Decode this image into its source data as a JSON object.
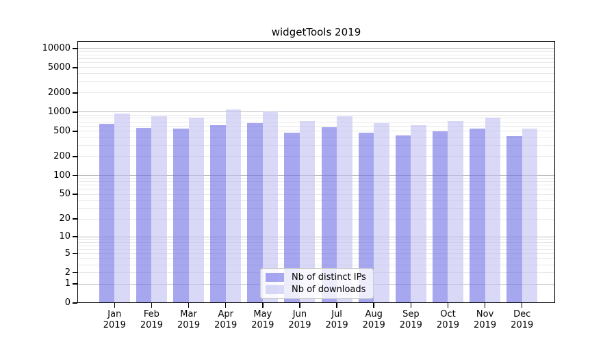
{
  "title": "widgetTools 2019",
  "chart_data": {
    "type": "bar",
    "title": "widgetTools 2019",
    "categories": [
      "Jan 2019",
      "Feb 2019",
      "Mar 2019",
      "Apr 2019",
      "May 2019",
      "Jun 2019",
      "Jul 2019",
      "Aug 2019",
      "Sep 2019",
      "Oct 2019",
      "Nov 2019",
      "Dec 2019"
    ],
    "series": [
      {
        "name": "Nb of distinct IPs",
        "color": "rgba(108,108,230,0.6)",
        "color_flat": "#a7a7f0",
        "values": [
          655,
          570,
          555,
          620,
          670,
          480,
          580,
          480,
          430,
          500,
          555,
          415
        ]
      },
      {
        "name": "Nb of downloads",
        "color": "rgba(192,192,242,0.6)",
        "color_flat": "#d9d9f7",
        "values": [
          950,
          870,
          820,
          1100,
          1020,
          730,
          860,
          675,
          620,
          725,
          820,
          550
        ]
      }
    ],
    "xlabel": "",
    "ylabel": "",
    "yscale": "log10(value+1)",
    "yticks": [
      0,
      1,
      2,
      5,
      10,
      20,
      50,
      100,
      200,
      500,
      1000,
      2000,
      5000,
      10000
    ],
    "ylim": [
      0,
      13000
    ],
    "grid": true,
    "legend_position": "lower center"
  }
}
